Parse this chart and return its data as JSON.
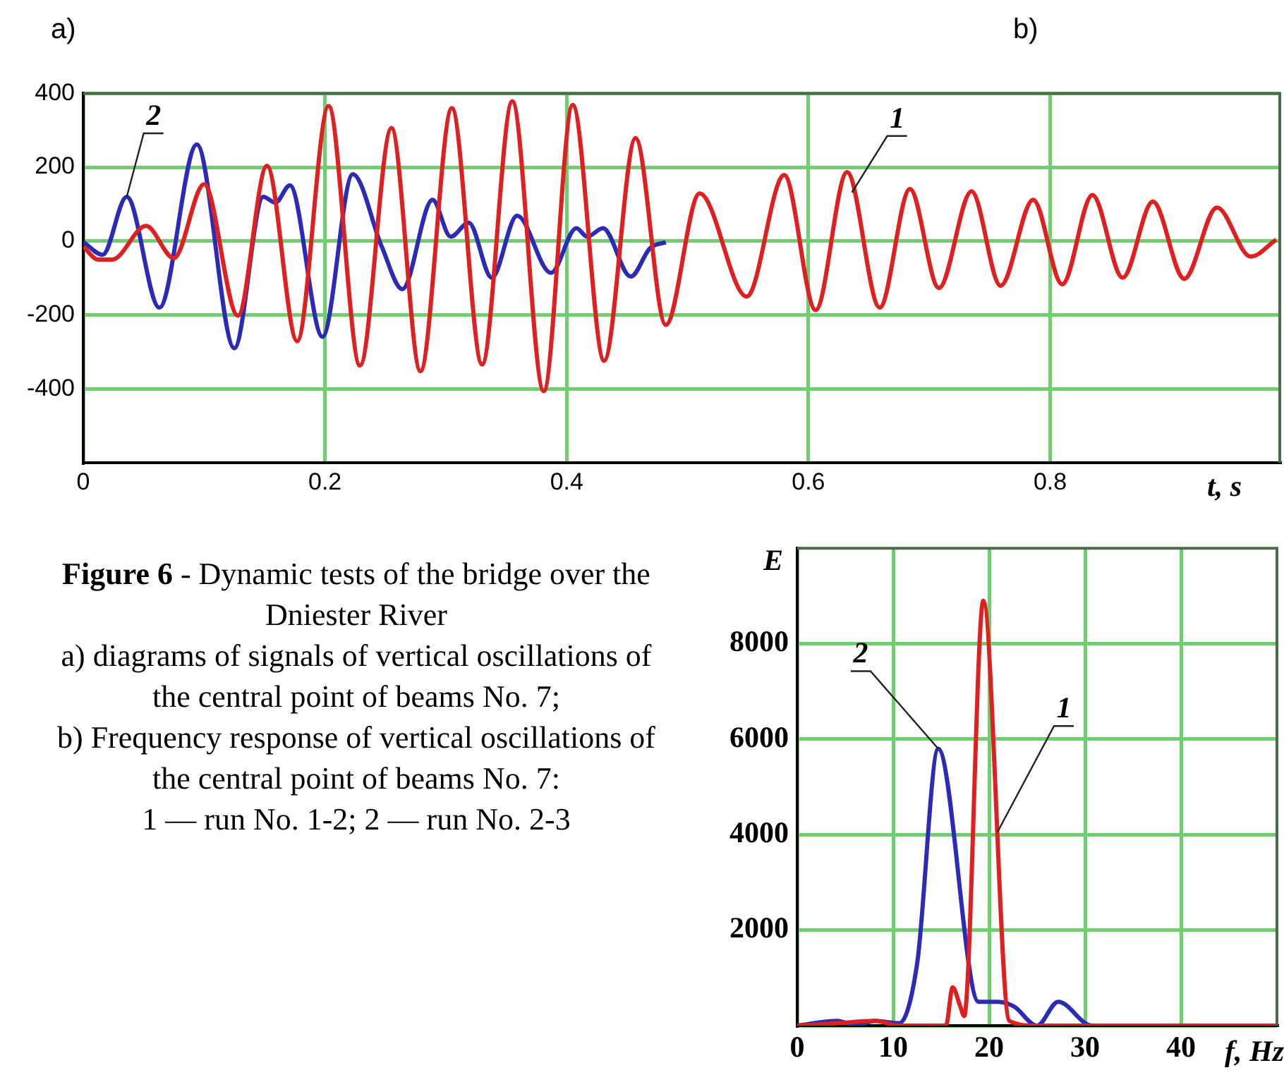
{
  "chart_data": [
    {
      "type": "line",
      "annotations": [
        "a)"
      ],
      "xlabel": "t, s",
      "xlim": [
        0,
        0.99
      ],
      "xticks": [
        0,
        0.2,
        0.4,
        0.6,
        0.8
      ],
      "ylim": [
        -600,
        400
      ],
      "yticks": [
        -400,
        -200,
        0,
        200,
        400
      ],
      "grid": true,
      "legend": false,
      "series": [
        {
          "name": "1",
          "color": "#e02020",
          "x": [
            0,
            0.0125,
            0.024,
            0.052,
            0.075,
            0.1,
            0.128,
            0.152,
            0.177,
            0.203,
            0.229,
            0.255,
            0.279,
            0.305,
            0.33,
            0.355,
            0.381,
            0.405,
            0.431,
            0.457,
            0.482,
            0.51,
            0.549,
            0.58,
            0.606,
            0.632,
            0.659,
            0.684,
            0.708,
            0.735,
            0.759,
            0.786,
            0.81,
            0.835,
            0.86,
            0.885,
            0.911,
            0.938,
            0.966,
            0.987
          ],
          "values": [
            -15,
            -50,
            -50,
            41,
            -46,
            154,
            -202,
            204,
            -271,
            366,
            -337,
            306,
            -352,
            360,
            -334,
            379,
            -406,
            369,
            -324,
            279,
            -227,
            129,
            -150,
            179,
            -187,
            187,
            -180,
            141,
            -127,
            135,
            -121,
            112,
            -117,
            125,
            -99,
            107,
            -102,
            91,
            -42,
            4
          ]
        },
        {
          "name": "2",
          "color": "#2b2bb8",
          "x": [
            0,
            0.016,
            0.036,
            0.063,
            0.094,
            0.125,
            0.149,
            0.159,
            0.171,
            0.198,
            0.223,
            0.247,
            0.264,
            0.289,
            0.304,
            0.319,
            0.338,
            0.359,
            0.387,
            0.408,
            0.417,
            0.43,
            0.453,
            0.469,
            0.482
          ],
          "values": [
            -2,
            -37,
            120,
            -180,
            262,
            -290,
            120,
            104,
            151,
            -259,
            181,
            -15,
            -130,
            112,
            12,
            50,
            -99,
            69,
            -86,
            35,
            12,
            35,
            -96,
            -19,
            -3
          ]
        }
      ]
    },
    {
      "type": "line",
      "annotations": [
        "b)",
        "Figure 6",
        "- Dynamic tests of the bridge over the Dniester River",
        "a) diagrams of signals of vertical oscillations of the central point of beams No. 7;",
        "b) Frequency response of vertical oscillations of the central point of beams No. 7:",
        "1 — run No. 1-2; 2 — run No. 2-3"
      ],
      "xlabel": "f, Hz",
      "ylabel": "E",
      "xlim": [
        0,
        50
      ],
      "xticks": [
        0,
        10,
        20,
        30,
        40
      ],
      "ylim": [
        0,
        10000
      ],
      "yticks": [
        {
          "value": 0,
          "label": null
        },
        2000,
        4000,
        6000,
        8000
      ],
      "grid": true,
      "legend": false,
      "series": [
        {
          "name": "1",
          "color": "#e02020",
          "x": [
            0,
            4.2,
            8.1,
            10.6,
            15.5,
            16.2,
            17,
            17.4,
            19.4,
            22.1,
            24.8,
            30.7,
            50
          ],
          "values": [
            0,
            50,
            100,
            0,
            0,
            800,
            400,
            200,
            8900,
            100,
            0,
            0,
            0
          ]
        },
        {
          "name": "2",
          "color": "#2b2bb8",
          "x": [
            0,
            4.2,
            6.1,
            8.1,
            10.6,
            12.5,
            14.7,
            18.9,
            20.9,
            22.6,
            25,
            27.2,
            30.7,
            50
          ],
          "values": [
            0,
            100,
            0,
            100,
            50,
            1300,
            5800,
            500,
            500,
            400,
            0,
            500,
            0,
            0
          ]
        }
      ]
    }
  ]
}
